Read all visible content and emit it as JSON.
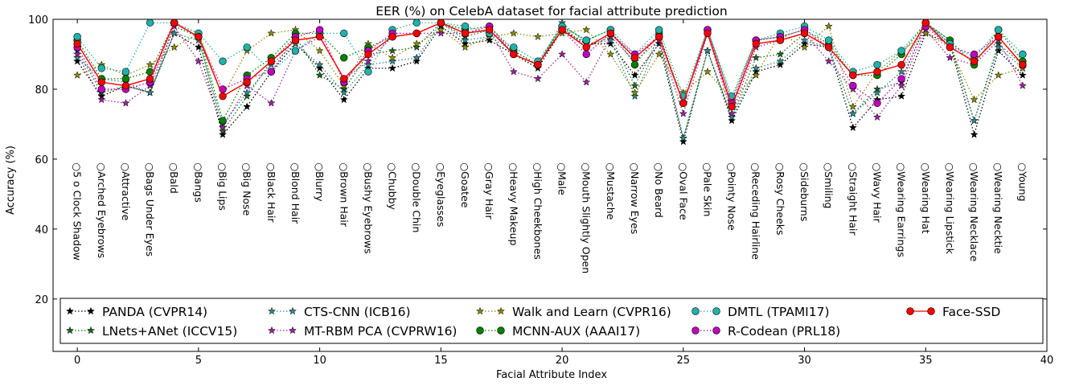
{
  "chart_data": {
    "type": "line",
    "title": "EER (%) on CelebA dataset for facial attribute prediction",
    "xlabel": "Facial Attribute Index",
    "ylabel": "Accuracy (%)",
    "xlim": [
      -1,
      40
    ],
    "ylim": [
      5,
      100
    ],
    "xticks": [
      0,
      5,
      10,
      15,
      20,
      25,
      30,
      35,
      40
    ],
    "yticks": [
      20,
      40,
      60,
      80,
      100
    ],
    "grid": false,
    "legend_position": "bottom",
    "x": [
      0,
      1,
      2,
      3,
      4,
      5,
      6,
      7,
      8,
      9,
      10,
      11,
      12,
      13,
      14,
      15,
      16,
      17,
      18,
      19,
      20,
      21,
      22,
      23,
      24,
      25,
      26,
      27,
      28,
      29,
      30,
      31,
      32,
      33,
      34,
      35,
      36,
      37,
      38,
      39
    ],
    "attribute_labels": [
      "5 o Clock Shadow",
      "Arched Eyebrows",
      "Attractive",
      "Bags Under Eyes",
      "Bald",
      "Bangs",
      "Big Lips",
      "Big Nose",
      "Black Hair",
      "Blond Hair",
      "Blurry",
      "Brown Hair",
      "Bushy Eyebrows",
      "Chubby",
      "Double Chin",
      "Eyeglasses",
      "Goatee",
      "Gray Hair",
      "Heavy Makeup",
      "High Cheekbones",
      "Male",
      "Mouth Slightly Open",
      "Mustache",
      "Narrow Eyes",
      "No Beard",
      "Oval Face",
      "Pale Skin",
      "Pointy Nose",
      "Receding Hairline",
      "Rosy Cheeks",
      "Sideburns",
      "Smiling",
      "Straight Hair",
      "Wavy Hair",
      "Wearing Earrings",
      "Wearing Hat",
      "Wearing Lipstick",
      "Wearing Necklace",
      "Wearing Necktie",
      "Young"
    ],
    "label_prefix": "○",
    "series": [
      {
        "name": "PANDA (CVPR14)",
        "marker": "star",
        "color": "#000000",
        "values": [
          88,
          78,
          81,
          79,
          96,
          92,
          67,
          75,
          85,
          93,
          86,
          77,
          86,
          86,
          88,
          98,
          93,
          94,
          90,
          86,
          97,
          93,
          93,
          84,
          93,
          65,
          91,
          71,
          85,
          87,
          93,
          92,
          69,
          77,
          78,
          96,
          93,
          67,
          91,
          84
        ]
      },
      {
        "name": "LNets+ANet (ICCV15)",
        "marker": "star",
        "color": "#1a6a1a",
        "values": [
          91,
          79,
          81,
          79,
          98,
          95,
          68,
          78,
          88,
          95,
          84,
          80,
          90,
          91,
          92,
          99,
          95,
          97,
          90,
          87,
          98,
          92,
          95,
          81,
          95,
          66,
          91,
          72,
          89,
          90,
          96,
          92,
          73,
          80,
          82,
          99,
          93,
          71,
          93,
          87
        ]
      },
      {
        "name": "CTS-CNN (ICB16)",
        "marker": "star",
        "color": "#2e8b8b",
        "values": [
          89,
          83,
          82,
          79,
          96,
          94,
          70,
          79,
          87,
          93,
          87,
          79,
          87,
          88,
          89,
          99,
          94,
          95,
          91,
          87,
          99,
          93,
          94,
          78,
          94,
          66,
          91,
          72,
          86,
          88,
          94,
          92,
          73,
          79,
          85,
          99,
          94,
          71,
          92,
          86
        ]
      },
      {
        "name": "MT-RBM PCA (CVPRW16)",
        "marker": "star",
        "color": "#a020a0",
        "values": [
          90,
          77,
          76,
          81,
          98,
          88,
          69,
          81,
          76,
          91,
          95,
          83,
          88,
          95,
          96,
          96,
          96,
          97,
          85,
          83,
          90,
          82,
          95,
          88,
          94,
          73,
          96,
          73,
          92,
          94,
          96,
          88,
          80,
          72,
          81,
          97,
          89,
          87,
          94,
          81
        ]
      },
      {
        "name": "Walk and Learn (CVPR16)",
        "marker": "star",
        "color": "#8b8b00",
        "values": [
          84,
          87,
          84,
          87,
          92,
          96,
          78,
          91,
          96,
          97,
          91,
          81,
          93,
          89,
          93,
          97,
          92,
          95,
          96,
          95,
          96,
          97,
          90,
          79,
          90,
          79,
          85,
          77,
          84,
          96,
          92,
          98,
          75,
          85,
          91,
          96,
          92,
          77,
          84,
          86
        ]
      },
      {
        "name": "MCNN-AUX (AAAI17)",
        "marker": "circle",
        "color": "#008000",
        "values": [
          94,
          83,
          83,
          85,
          99,
          96,
          71,
          84,
          89,
          96,
          96,
          89,
          92,
          95,
          96,
          99,
          97,
          98,
          91,
          87,
          98,
          94,
          97,
          87,
          96,
          76,
          97,
          77,
          94,
          95,
          97,
          93,
          84,
          84,
          90,
          99,
          94,
          87,
          97,
          88
        ]
      },
      {
        "name": "DMTL (TPAMI17)",
        "marker": "circle",
        "color": "#20b2aa",
        "values": [
          95,
          86,
          85,
          99,
          99,
          96,
          88,
          92,
          85,
          91,
          96,
          96,
          85,
          97,
          99,
          99,
          98,
          96,
          92,
          88,
          98,
          94,
          97,
          90,
          97,
          78,
          97,
          78,
          94,
          96,
          98,
          94,
          85,
          87,
          91,
          99,
          93,
          89,
          97,
          90
        ]
      },
      {
        "name": "R-Codean (PRL18)",
        "marker": "circle",
        "color": "#c000c0",
        "values": [
          92,
          80,
          80,
          82,
          99,
          95,
          80,
          83,
          85,
          95,
          97,
          82,
          91,
          96,
          96,
          99,
          96,
          98,
          90,
          87,
          97,
          90,
          96,
          90,
          95,
          76,
          97,
          76,
          94,
          95,
          97,
          92,
          81,
          76,
          83,
          98,
          92,
          90,
          95,
          87
        ]
      },
      {
        "name": "Face-SSD",
        "marker": "circle",
        "color": "#ff0000",
        "values": [
          93,
          82,
          81,
          83,
          99,
          95,
          78,
          82,
          88,
          94,
          95,
          83,
          90,
          95,
          96,
          99,
          96,
          97,
          90,
          87,
          97,
          92,
          96,
          89,
          95,
          76,
          96,
          75,
          93,
          94,
          96,
          92,
          84,
          85,
          87,
          99,
          92,
          88,
          95,
          87
        ]
      }
    ]
  }
}
